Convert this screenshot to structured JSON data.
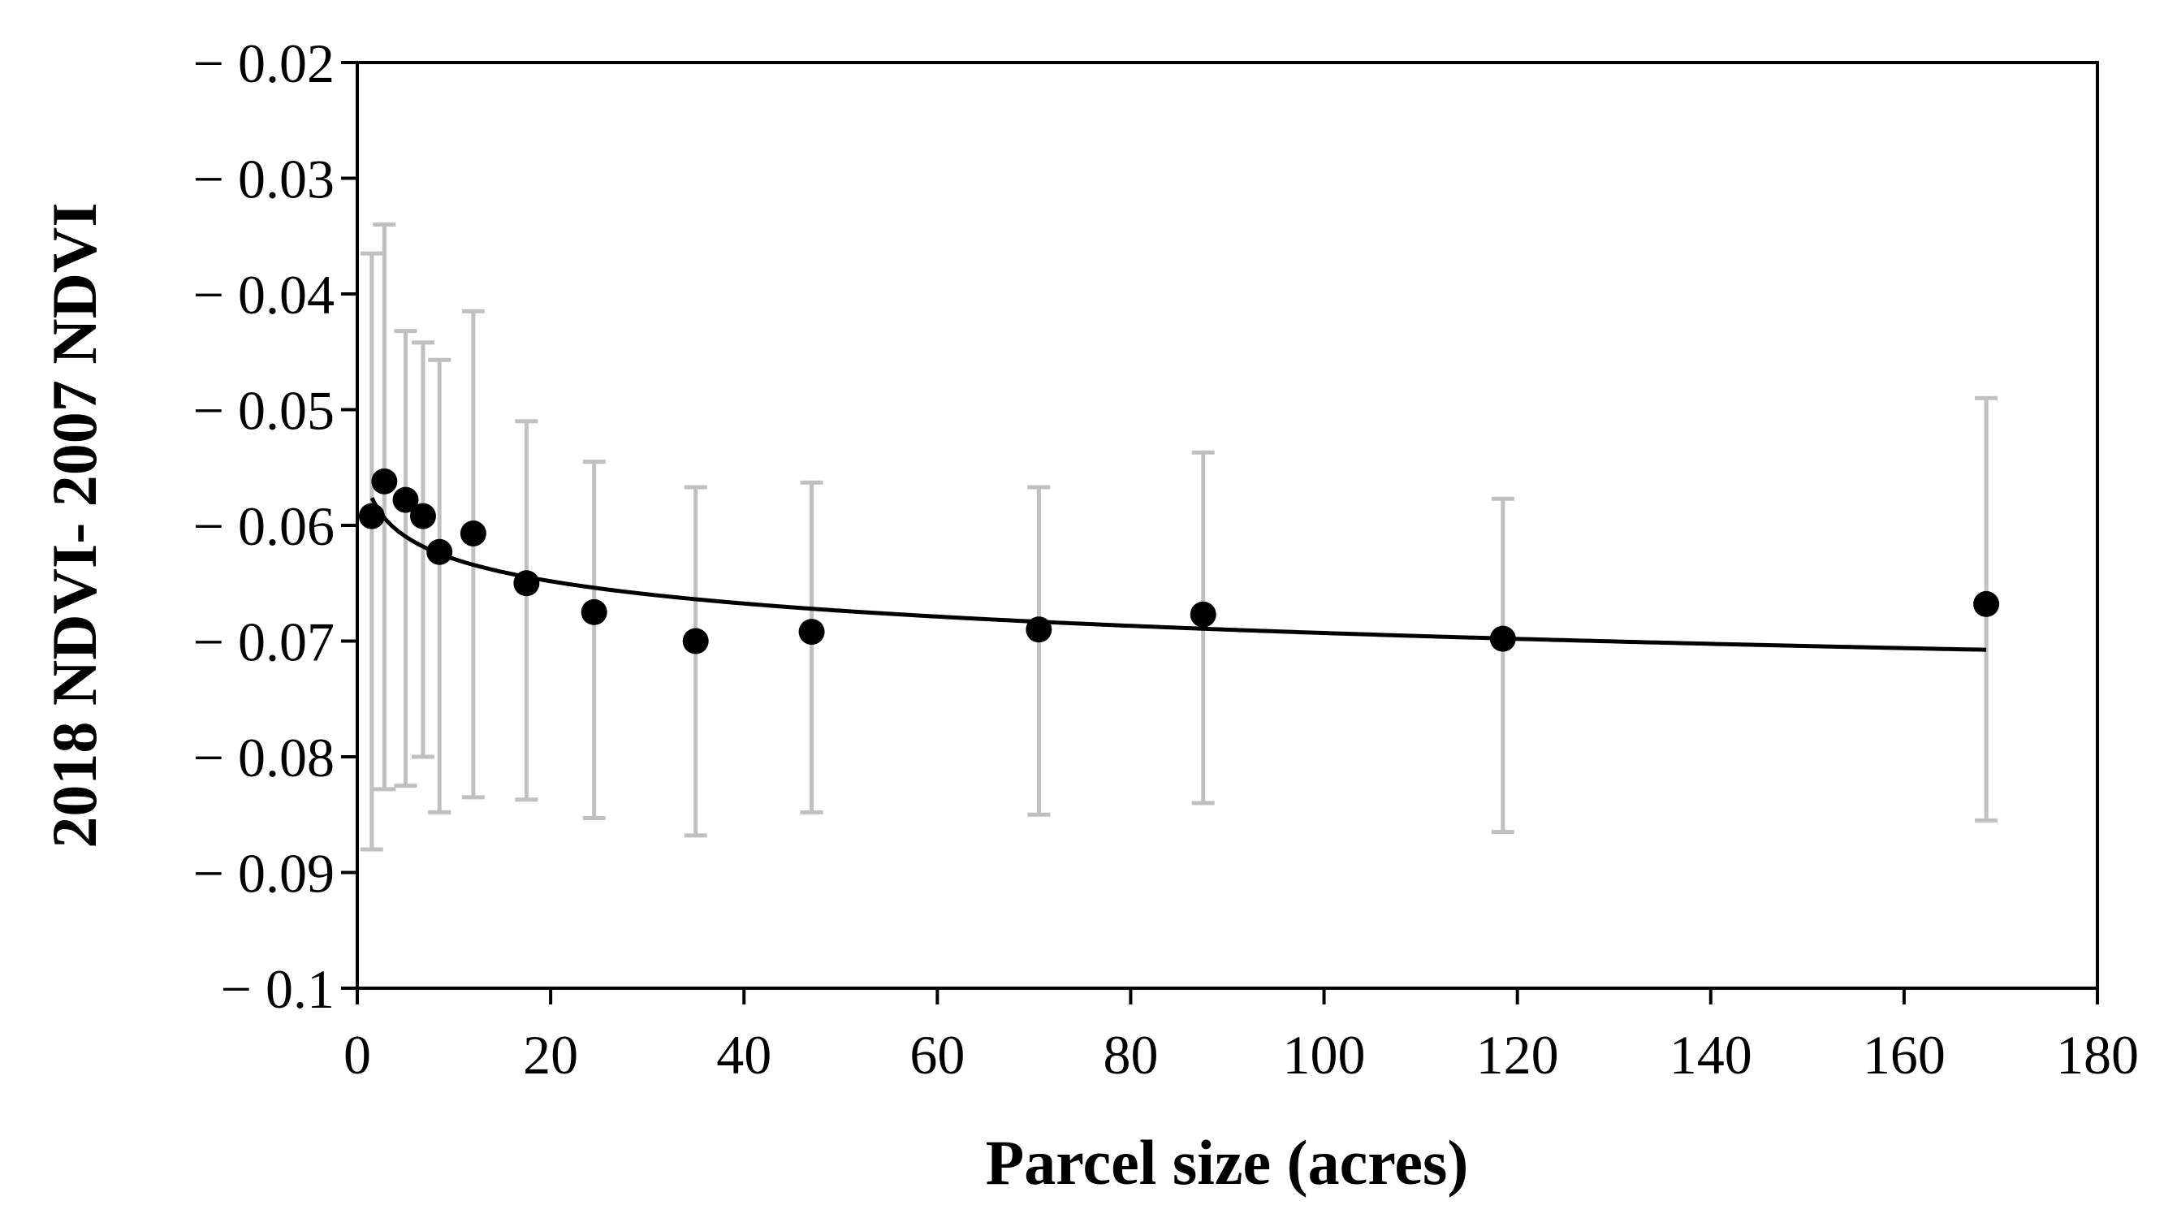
{
  "chart_data": {
    "type": "scatter",
    "title": "",
    "xlabel": "Parcel size (acres)",
    "ylabel": "2018 NDVI- 2007 NDVI",
    "xlim": [
      0,
      180
    ],
    "ylim": [
      -0.1,
      -0.02
    ],
    "x_ticks": [
      0,
      20,
      40,
      60,
      80,
      100,
      120,
      140,
      160,
      180
    ],
    "x_tick_labels": [
      "0",
      "20",
      "40",
      "60",
      "80",
      "100",
      "120",
      "140",
      "160",
      "180"
    ],
    "y_ticks": [
      -0.02,
      -0.03,
      -0.04,
      -0.05,
      -0.06,
      -0.07,
      -0.08,
      -0.09,
      -0.1
    ],
    "y_tick_labels": [
      "− 0.02",
      "− 0.03",
      "− 0.04",
      "− 0.05",
      "− 0.06",
      "− 0.07",
      "− 0.08",
      "− 0.09",
      "− 0.1"
    ],
    "grid": false,
    "legend": "none",
    "series": [
      {
        "x": [
          1.5,
          2.8,
          5.0,
          6.8,
          8.5,
          12.0,
          17.5,
          24.5,
          35.0,
          47.0,
          70.5,
          87.5,
          118.5,
          168.5
        ],
        "y": [
          -0.0592,
          -0.0562,
          -0.0578,
          -0.0592,
          -0.0623,
          -0.0607,
          -0.065,
          -0.0675,
          -0.07,
          -0.0692,
          -0.069,
          -0.0677,
          -0.0698,
          -0.0668
        ],
        "y_err_upper": [
          -0.0365,
          -0.034,
          -0.0432,
          -0.0442,
          -0.0457,
          -0.0415,
          -0.051,
          -0.0545,
          -0.0567,
          -0.0563,
          -0.0567,
          -0.0537,
          -0.0577,
          -0.049
        ],
        "y_err_lower": [
          -0.088,
          -0.0828,
          -0.0825,
          -0.08,
          -0.0848,
          -0.0835,
          -0.0837,
          -0.0853,
          -0.0868,
          -0.0848,
          -0.085,
          -0.084,
          -0.0865,
          -0.0855
        ],
        "marker_color": "#000000",
        "errorbar_color": "#c0c0c0"
      }
    ],
    "trendline": {
      "type": "logarithmic",
      "x_start": 1.5,
      "x_end": 168.5,
      "a": -0.00278,
      "b": -0.0565,
      "color": "#000000"
    }
  }
}
